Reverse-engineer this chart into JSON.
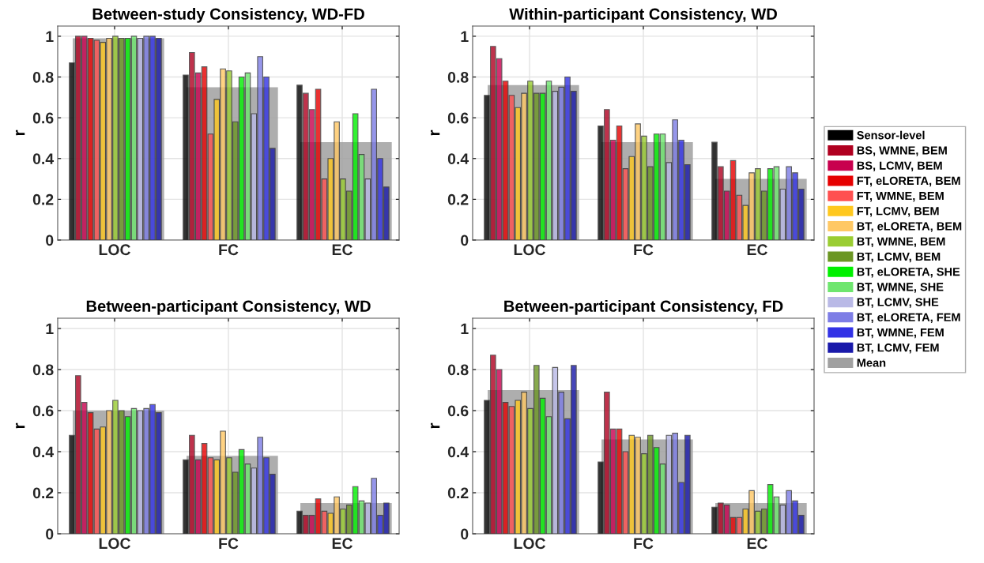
{
  "chart_data": [
    {
      "type": "bar",
      "title": "Between-study Consistency, WD-FD",
      "ylabel": "r",
      "categories": [
        "LOC",
        "FC",
        "EC"
      ],
      "ylim": [
        0,
        1.05
      ],
      "yticks": [
        0,
        0.2,
        0.4,
        0.6,
        0.8,
        1
      ],
      "grid": true,
      "legend": false,
      "series": [
        {
          "color": "#000000",
          "values": [
            0.87,
            0.81,
            0.76
          ]
        },
        {
          "color": "#b00020",
          "values": [
            1.0,
            0.92,
            0.72
          ]
        },
        {
          "color": "#c8004e",
          "values": [
            1.0,
            0.82,
            0.64
          ]
        },
        {
          "color": "#e60000",
          "values": [
            0.99,
            0.85,
            0.74
          ]
        },
        {
          "color": "#ff5050",
          "values": [
            0.98,
            0.52,
            0.3
          ]
        },
        {
          "color": "#ffc81e",
          "values": [
            0.97,
            0.69,
            0.4
          ]
        },
        {
          "color": "#ffc864",
          "values": [
            0.99,
            0.84,
            0.58
          ]
        },
        {
          "color": "#9acd32",
          "values": [
            1.0,
            0.83,
            0.3
          ]
        },
        {
          "color": "#6b9623",
          "values": [
            0.99,
            0.58,
            0.24
          ]
        },
        {
          "color": "#00f000",
          "values": [
            0.99,
            0.8,
            0.62
          ]
        },
        {
          "color": "#6ee66e",
          "values": [
            1.0,
            0.82,
            0.42
          ]
        },
        {
          "color": "#b9b9e6",
          "values": [
            0.99,
            0.62,
            0.3
          ]
        },
        {
          "color": "#7d7de6",
          "values": [
            1.0,
            0.9,
            0.74
          ]
        },
        {
          "color": "#3232e6",
          "values": [
            1.0,
            0.8,
            0.4
          ]
        },
        {
          "color": "#1919aa",
          "values": [
            0.99,
            0.45,
            0.26
          ]
        },
        {
          "color": "#a0a0a0",
          "values": [
            0.99,
            0.75,
            0.48
          ]
        }
      ]
    },
    {
      "type": "bar",
      "title": "Within-participant Consistency, WD",
      "ylabel": "r",
      "categories": [
        "LOC",
        "FC",
        "EC"
      ],
      "ylim": [
        0,
        1.05
      ],
      "yticks": [
        0,
        0.2,
        0.4,
        0.6,
        0.8,
        1
      ],
      "grid": true,
      "legend": "right",
      "series": [
        {
          "name": "Sensor-level",
          "color": "#000000",
          "values": [
            0.71,
            0.56,
            0.48
          ]
        },
        {
          "name": "BS, WMNE, BEM",
          "color": "#b00020",
          "values": [
            0.95,
            0.64,
            0.36
          ]
        },
        {
          "name": "BS, LCMV, BEM",
          "color": "#c8004e",
          "values": [
            0.89,
            0.49,
            0.24
          ]
        },
        {
          "name": "FT, eLORETA, BEM",
          "color": "#e60000",
          "values": [
            0.78,
            0.56,
            0.39
          ]
        },
        {
          "name": "FT, WMNE, BEM",
          "color": "#ff5050",
          "values": [
            0.71,
            0.35,
            0.22
          ]
        },
        {
          "name": "FT, LCMV, BEM",
          "color": "#ffc81e",
          "values": [
            0.65,
            0.41,
            0.17
          ]
        },
        {
          "name": "BT, eLORETA, BEM",
          "color": "#ffc864",
          "values": [
            0.72,
            0.57,
            0.33
          ]
        },
        {
          "name": "BT, WMNE, BEM",
          "color": "#9acd32",
          "values": [
            0.78,
            0.51,
            0.35
          ]
        },
        {
          "name": "BT, LCMV, BEM",
          "color": "#6b9623",
          "values": [
            0.72,
            0.36,
            0.24
          ]
        },
        {
          "name": "BT, eLORETA, SHE",
          "color": "#00f000",
          "values": [
            0.72,
            0.52,
            0.35
          ]
        },
        {
          "name": "BT, WMNE, SHE",
          "color": "#6ee66e",
          "values": [
            0.78,
            0.52,
            0.36
          ]
        },
        {
          "name": "BT, LCMV, SHE",
          "color": "#b9b9e6",
          "values": [
            0.73,
            0.38,
            0.25
          ]
        },
        {
          "name": "BT, eLORETA, FEM",
          "color": "#7d7de6",
          "values": [
            0.75,
            0.59,
            0.36
          ]
        },
        {
          "name": "BT, WMNE, FEM",
          "color": "#3232e6",
          "values": [
            0.8,
            0.49,
            0.33
          ]
        },
        {
          "name": "BT, LCMV, FEM",
          "color": "#1919aa",
          "values": [
            0.73,
            0.37,
            0.25
          ]
        },
        {
          "name": "Mean",
          "color": "#a0a0a0",
          "values": [
            0.76,
            0.48,
            0.3
          ]
        }
      ]
    },
    {
      "type": "bar",
      "title": "Between-participant Consistency, WD",
      "ylabel": "r",
      "categories": [
        "LOC",
        "FC",
        "EC"
      ],
      "ylim": [
        0,
        1.05
      ],
      "yticks": [
        0,
        0.2,
        0.4,
        0.6,
        0.8,
        1
      ],
      "grid": true,
      "legend": false,
      "series": [
        {
          "color": "#000000",
          "values": [
            0.48,
            0.36,
            0.11
          ]
        },
        {
          "color": "#b00020",
          "values": [
            0.77,
            0.48,
            0.09
          ]
        },
        {
          "color": "#c8004e",
          "values": [
            0.64,
            0.36,
            0.09
          ]
        },
        {
          "color": "#e60000",
          "values": [
            0.59,
            0.44,
            0.17
          ]
        },
        {
          "color": "#ff5050",
          "values": [
            0.51,
            0.37,
            0.11
          ]
        },
        {
          "color": "#ffc81e",
          "values": [
            0.52,
            0.36,
            0.1
          ]
        },
        {
          "color": "#ffc864",
          "values": [
            0.6,
            0.5,
            0.18
          ]
        },
        {
          "color": "#9acd32",
          "values": [
            0.65,
            0.37,
            0.12
          ]
        },
        {
          "color": "#6b9623",
          "values": [
            0.6,
            0.3,
            0.14
          ]
        },
        {
          "color": "#00f000",
          "values": [
            0.57,
            0.41,
            0.23
          ]
        },
        {
          "color": "#6ee66e",
          "values": [
            0.61,
            0.34,
            0.16
          ]
        },
        {
          "color": "#b9b9e6",
          "values": [
            0.6,
            0.32,
            0.15
          ]
        },
        {
          "color": "#7d7de6",
          "values": [
            0.61,
            0.47,
            0.27
          ]
        },
        {
          "color": "#3232e6",
          "values": [
            0.63,
            0.37,
            0.09
          ]
        },
        {
          "color": "#1919aa",
          "values": [
            0.59,
            0.29,
            0.15
          ]
        },
        {
          "color": "#a0a0a0",
          "values": [
            0.6,
            0.38,
            0.15
          ]
        }
      ]
    },
    {
      "type": "bar",
      "title": "Between-participant Consistency, FD",
      "ylabel": "r",
      "categories": [
        "LOC",
        "FC",
        "EC"
      ],
      "ylim": [
        0,
        1.05
      ],
      "yticks": [
        0,
        0.2,
        0.4,
        0.6,
        0.8,
        1
      ],
      "grid": true,
      "legend": false,
      "series": [
        {
          "color": "#000000",
          "values": [
            0.65,
            0.35,
            0.13
          ]
        },
        {
          "color": "#b00020",
          "values": [
            0.87,
            0.69,
            0.15
          ]
        },
        {
          "color": "#c8004e",
          "values": [
            0.8,
            0.51,
            0.14
          ]
        },
        {
          "color": "#e60000",
          "values": [
            0.64,
            0.51,
            0.08
          ]
        },
        {
          "color": "#ff5050",
          "values": [
            0.62,
            0.4,
            0.08
          ]
        },
        {
          "color": "#ffc81e",
          "values": [
            0.65,
            0.48,
            0.12
          ]
        },
        {
          "color": "#ffc864",
          "values": [
            0.69,
            0.47,
            0.21
          ]
        },
        {
          "color": "#9acd32",
          "values": [
            0.61,
            0.39,
            0.11
          ]
        },
        {
          "color": "#6b9623",
          "values": [
            0.82,
            0.48,
            0.12
          ]
        },
        {
          "color": "#00f000",
          "values": [
            0.66,
            0.42,
            0.24
          ]
        },
        {
          "color": "#6ee66e",
          "values": [
            0.57,
            0.34,
            0.18
          ]
        },
        {
          "color": "#b9b9e6",
          "values": [
            0.81,
            0.48,
            0.14
          ]
        },
        {
          "color": "#7d7de6",
          "values": [
            0.69,
            0.49,
            0.21
          ]
        },
        {
          "color": "#3232e6",
          "values": [
            0.56,
            0.25,
            0.16
          ]
        },
        {
          "color": "#1919aa",
          "values": [
            0.82,
            0.48,
            0.09
          ]
        },
        {
          "color": "#a0a0a0",
          "values": [
            0.7,
            0.46,
            0.15
          ]
        }
      ]
    }
  ]
}
